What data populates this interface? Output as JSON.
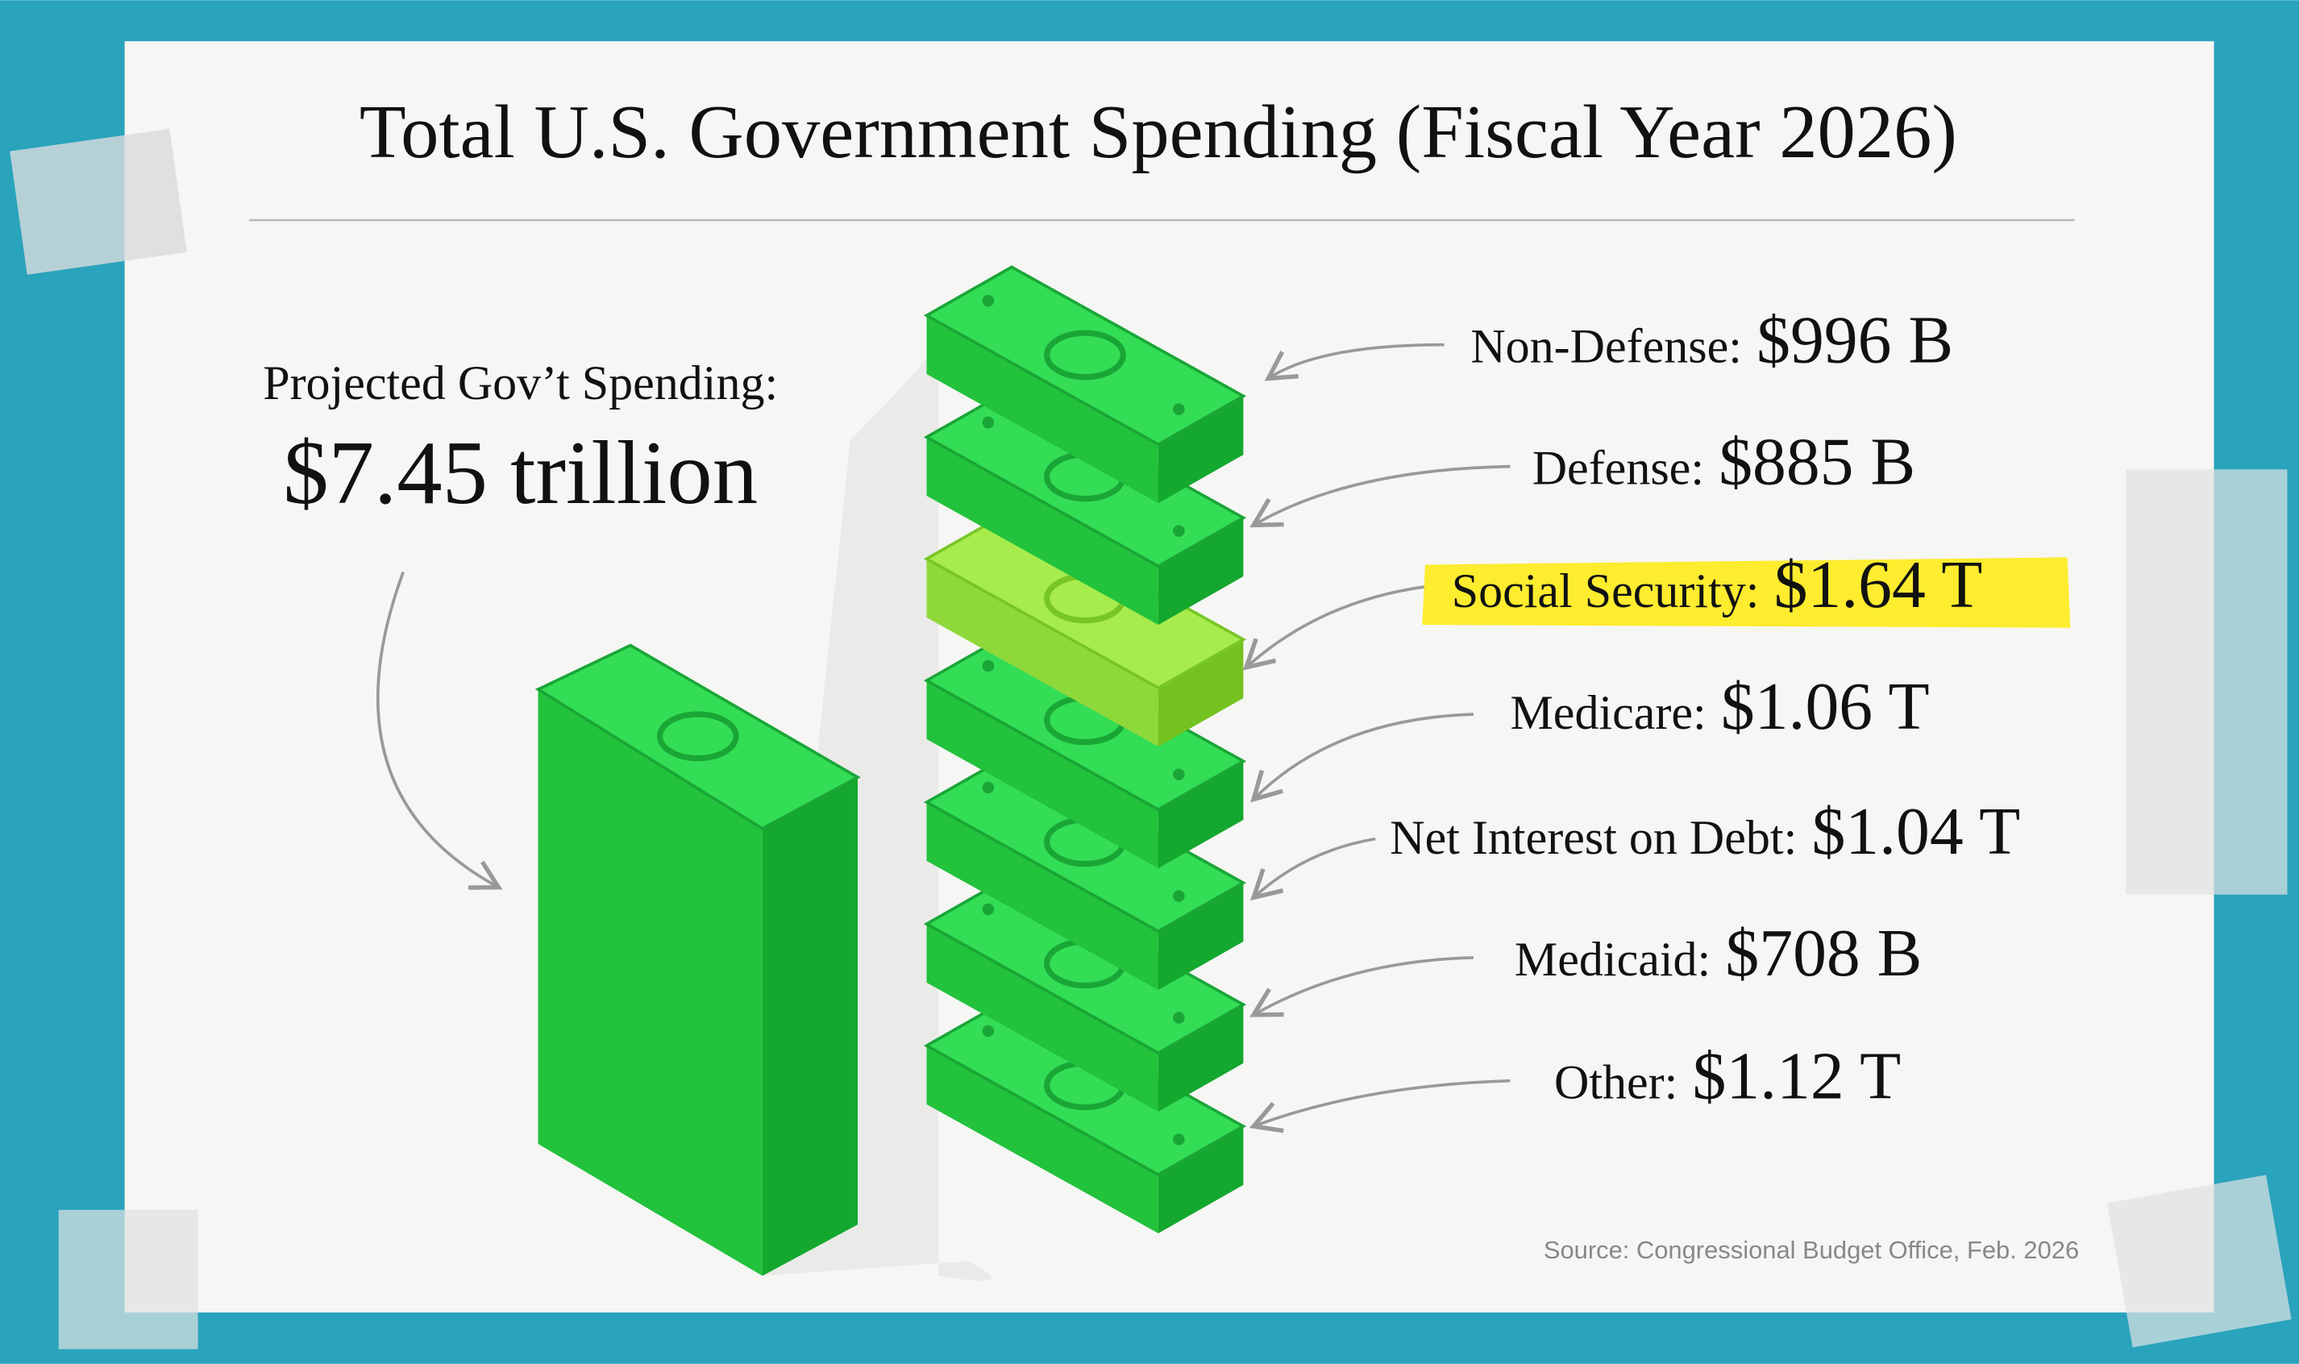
{
  "title": "Total U.S. Government Spending (Fiscal Year 2026)",
  "summary": {
    "label": "Projected Gov’t Spending:",
    "value": "$7.45 trillion"
  },
  "items": [
    {
      "label": "Non-Defense:",
      "value": "$996 B"
    },
    {
      "label": "Defense:",
      "value": "$885 B"
    },
    {
      "label": "Social Security:",
      "value": "$1.64 T"
    },
    {
      "label": "Medicare:",
      "value": "$1.06 T"
    },
    {
      "label": "Net Interest on Debt:",
      "value": "$1.04 T"
    },
    {
      "label": "Medicaid:",
      "value": "$708 B"
    },
    {
      "label": "Other:",
      "value": "$1.12 T"
    }
  ],
  "source": "Source: Congressional Budget Office, Feb. 2026"
}
